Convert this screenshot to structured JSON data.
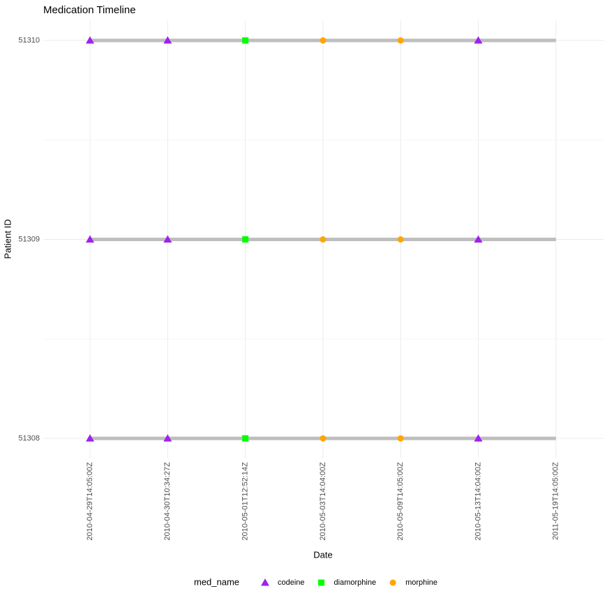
{
  "chart_data": {
    "type": "timeline",
    "title": "Medication Timeline",
    "xlabel": "Date",
    "ylabel": "Patient ID",
    "legend_title": "med_name",
    "legend_position": "bottom",
    "grid": true,
    "categories": [
      "2010-04-29T14:05:00Z",
      "2010-04-30T10:34:27Z",
      "2010-05-01T12:52:14Z",
      "2010-05-03T14:04:00Z",
      "2010-05-09T14:05:00Z",
      "2010-05-13T14:04:00Z",
      "2011-05-19T14:05:00Z"
    ],
    "ylim": [
      51307.9,
      51310.1
    ],
    "yticks": [
      51308,
      51309,
      51310
    ],
    "yminor": [
      51308.5,
      51309.5
    ],
    "line_color": "#bebebe",
    "lines": [
      {
        "y": 51308,
        "start": "2010-04-29T14:05:00Z",
        "end": "2011-05-19T14:05:00Z"
      },
      {
        "y": 51309,
        "start": "2010-04-29T14:05:00Z",
        "end": "2011-05-19T14:05:00Z"
      },
      {
        "y": 51310,
        "start": "2010-04-29T14:05:00Z",
        "end": "2011-05-19T14:05:00Z"
      }
    ],
    "series": [
      {
        "name": "codeine",
        "color": "#a020f0",
        "shape": "triangle",
        "x": [
          "2010-04-29T14:05:00Z",
          "2010-04-30T10:34:27Z",
          "2010-05-13T14:04:00Z",
          "2010-04-29T14:05:00Z",
          "2010-04-30T10:34:27Z",
          "2010-05-13T14:04:00Z",
          "2010-04-29T14:05:00Z",
          "2010-04-30T10:34:27Z",
          "2010-05-13T14:04:00Z"
        ],
        "y": [
          51308,
          51308,
          51308,
          51309,
          51309,
          51309,
          51310,
          51310,
          51310
        ]
      },
      {
        "name": "diamorphine",
        "color": "#00ff00",
        "shape": "square",
        "x": [
          "2010-05-01T12:52:14Z",
          "2010-05-01T12:52:14Z",
          "2010-05-01T12:52:14Z"
        ],
        "y": [
          51308,
          51309,
          51310
        ]
      },
      {
        "name": "morphine",
        "color": "#ffa500",
        "shape": "circle",
        "x": [
          "2010-05-03T14:04:00Z",
          "2010-05-09T14:05:00Z",
          "2010-05-03T14:04:00Z",
          "2010-05-09T14:05:00Z",
          "2010-05-03T14:04:00Z",
          "2010-05-09T14:05:00Z"
        ],
        "y": [
          51308,
          51308,
          51309,
          51309,
          51310,
          51310
        ]
      }
    ]
  }
}
